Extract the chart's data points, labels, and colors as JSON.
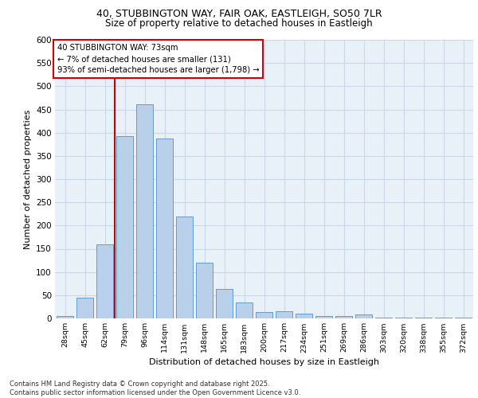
{
  "title_line1": "40, STUBBINGTON WAY, FAIR OAK, EASTLEIGH, SO50 7LR",
  "title_line2": "Size of property relative to detached houses in Eastleigh",
  "xlabel": "Distribution of detached houses by size in Eastleigh",
  "ylabel": "Number of detached properties",
  "footer_line1": "Contains HM Land Registry data © Crown copyright and database right 2025.",
  "footer_line2": "Contains public sector information licensed under the Open Government Licence v3.0.",
  "annotation_title": "40 STUBBINGTON WAY: 73sqm",
  "annotation_line1": "← 7% of detached houses are smaller (131)",
  "annotation_line2": "93% of semi-detached houses are larger (1,798) →",
  "bar_color": "#b8d0ea",
  "bar_edge_color": "#6699cc",
  "grid_color": "#c8d8ea",
  "background_color": "#e8f0f8",
  "annotation_box_color": "#ffffff",
  "annotation_box_edge": "#cc0000",
  "vline_color": "#cc0000",
  "categories": [
    "28sqm",
    "45sqm",
    "62sqm",
    "79sqm",
    "96sqm",
    "114sqm",
    "131sqm",
    "148sqm",
    "165sqm",
    "183sqm",
    "200sqm",
    "217sqm",
    "234sqm",
    "251sqm",
    "269sqm",
    "286sqm",
    "303sqm",
    "320sqm",
    "338sqm",
    "355sqm",
    "372sqm"
  ],
  "values": [
    5,
    44,
    160,
    393,
    462,
    388,
    220,
    120,
    63,
    35,
    14,
    16,
    10,
    6,
    6,
    8,
    1,
    1,
    1,
    1,
    1
  ],
  "vline_x_pos": 2.5,
  "ylim": [
    0,
    600
  ],
  "yticks": [
    0,
    50,
    100,
    150,
    200,
    250,
    300,
    350,
    400,
    450,
    500,
    550,
    600
  ]
}
